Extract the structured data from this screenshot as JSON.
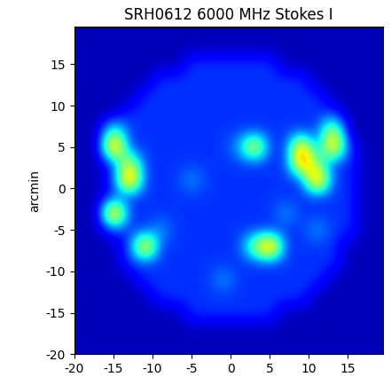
{
  "chart_data": {
    "type": "heatmap",
    "title": "SRH0612 6000 MHz Stokes I",
    "y_label": "arcmin",
    "color": "jet",
    "x": [
      -19,
      -17,
      -15,
      -13,
      -11,
      -9,
      -7,
      -5,
      -3,
      -1,
      1,
      3,
      5,
      7,
      9,
      11,
      13,
      15,
      17,
      19
    ],
    "y": [
      -19,
      -17,
      -15,
      -13,
      -11,
      -9,
      -7,
      -5,
      -3,
      -1,
      1,
      3,
      5,
      7,
      9,
      11,
      13,
      15,
      17,
      19
    ],
    "cells": [
      [
        1,
        1,
        1,
        1,
        1,
        1,
        1,
        1,
        1,
        1,
        1,
        1,
        1,
        1,
        1,
        1,
        1,
        1,
        1,
        1
      ],
      [
        1,
        1,
        1,
        1,
        1,
        1,
        1,
        1,
        1,
        1,
        1,
        1,
        1,
        1,
        1,
        1,
        1,
        1,
        1,
        1
      ],
      [
        1,
        1,
        1,
        1,
        1,
        1,
        1,
        3.5,
        3.5,
        3.5,
        3.5,
        3.5,
        3.5,
        1,
        1,
        1,
        1,
        1,
        1,
        1
      ],
      [
        1,
        1,
        1,
        1,
        1,
        3.5,
        3.5,
        3.5,
        3.5,
        3.5,
        3.5,
        3.5,
        3.5,
        3.5,
        3.5,
        1,
        1,
        1,
        1,
        1
      ],
      [
        1,
        1,
        1,
        1,
        3.5,
        3.5,
        3.5,
        3.5,
        3.5,
        6,
        3.5,
        3.5,
        3.5,
        3.5,
        3.5,
        3.5,
        1,
        1,
        1,
        1
      ],
      [
        1,
        1,
        1,
        3.5,
        3.5,
        3.5,
        3.5,
        3.5,
        3.5,
        3.5,
        3.5,
        3.5,
        3.5,
        3.5,
        3.5,
        3.5,
        3.5,
        1,
        1,
        1
      ],
      [
        1,
        1,
        1,
        3.5,
        18,
        3.5,
        3.5,
        3.5,
        3.5,
        3.5,
        3.5,
        12,
        20,
        3.5,
        3.5,
        3.5,
        3.5,
        1,
        1,
        1
      ],
      [
        1,
        1,
        3.5,
        3.5,
        3.5,
        6,
        3.5,
        3.5,
        3.5,
        3.5,
        3.5,
        3.5,
        3.5,
        3.5,
        3.5,
        6,
        3.5,
        3.5,
        1,
        1
      ],
      [
        1,
        1,
        20,
        3.5,
        3.5,
        3.5,
        3.5,
        3.5,
        3.5,
        3.5,
        3.5,
        3.5,
        3.5,
        6,
        3.5,
        3.5,
        3.5,
        3.5,
        1,
        1
      ],
      [
        1,
        1,
        3.5,
        3.5,
        3.5,
        3.5,
        3.5,
        3.5,
        3.5,
        3.5,
        3.5,
        3.5,
        3.5,
        3.5,
        3.5,
        3.5,
        3.5,
        3.5,
        1,
        1
      ],
      [
        1,
        1,
        3.5,
        20,
        3.5,
        3.5,
        3.5,
        6,
        3.5,
        3.5,
        3.5,
        3.5,
        3.5,
        3.5,
        3.5,
        20,
        3.5,
        3.5,
        1,
        1
      ],
      [
        1,
        1,
        3.5,
        14,
        3.5,
        3.5,
        3.5,
        3.5,
        3.5,
        3.5,
        3.5,
        3.5,
        3.5,
        3.5,
        18,
        10,
        3.5,
        3.5,
        1,
        1
      ],
      [
        1,
        1,
        20,
        3.5,
        3.5,
        3.5,
        3.5,
        3.5,
        3.5,
        3.5,
        6,
        16,
        3.5,
        3.5,
        18,
        3.5,
        18,
        3.5,
        1,
        1
      ],
      [
        1,
        1,
        10,
        3.5,
        3.5,
        3.5,
        3.5,
        3.5,
        3.5,
        3.5,
        3.5,
        3.5,
        3.5,
        3.5,
        3.5,
        3.5,
        14,
        1,
        1,
        1
      ],
      [
        1,
        1,
        1,
        3.5,
        3.5,
        3.5,
        3.5,
        3.5,
        3.5,
        3.5,
        3.5,
        3.5,
        3.5,
        3.5,
        3.5,
        3.5,
        3.5,
        1,
        1,
        1
      ],
      [
        1,
        1,
        1,
        1,
        3.5,
        3.5,
        3.5,
        3.5,
        3.5,
        3.5,
        3.5,
        3.5,
        3.5,
        3.5,
        3.5,
        3.5,
        1,
        1,
        1,
        1
      ],
      [
        1,
        1,
        1,
        1,
        1,
        3.5,
        3.5,
        3.5,
        3.5,
        3.5,
        3.5,
        3.5,
        3.5,
        3.5,
        3.5,
        1,
        1,
        1,
        1,
        1
      ],
      [
        1,
        1,
        1,
        1,
        1,
        1,
        1,
        3.5,
        3.5,
        3.5,
        3.5,
        3.5,
        3.5,
        1,
        1,
        1,
        1,
        1,
        1,
        1
      ],
      [
        1,
        1,
        1,
        1,
        1,
        1,
        1,
        1,
        1,
        1,
        1,
        1,
        1,
        1,
        1,
        1,
        1,
        1,
        1,
        1
      ],
      [
        1,
        1,
        1,
        1,
        1,
        1,
        1,
        1,
        1,
        1,
        1,
        1,
        1,
        1,
        1,
        1,
        1,
        1,
        1,
        1
      ]
    ],
    "color_range": [
      0,
      20
    ],
    "xlim": [
      -20,
      19.5
    ],
    "ylim": [
      -20,
      19.5
    ],
    "xticks": [
      -20,
      -15,
      -10,
      -5,
      0,
      5,
      10,
      15
    ],
    "yticks": [
      -20,
      -15,
      -10,
      -5,
      0,
      5,
      10,
      15
    ]
  }
}
